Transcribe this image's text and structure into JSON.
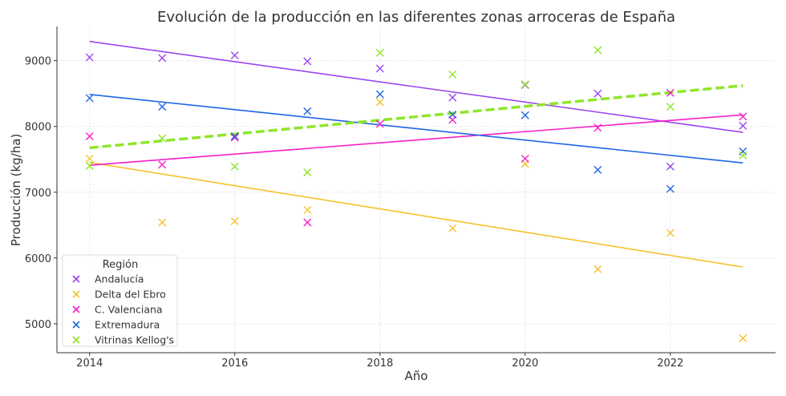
{
  "chart_data": {
    "type": "scatter",
    "title": "Evolución de la producción en las diferentes zonas arroceras de España",
    "xlabel": "Año",
    "ylabel": "Producción (kg/ha)",
    "xlim": [
      2013.55,
      2023.45
    ],
    "ylim": [
      4560,
      9520
    ],
    "xticks": [
      2014,
      2016,
      2018,
      2020,
      2022
    ],
    "yticks": [
      5000,
      6000,
      7000,
      8000,
      9000
    ],
    "grid": true,
    "legend": {
      "title": "Región",
      "placement": "lower-left"
    },
    "x": [
      2014,
      2015,
      2016,
      2017,
      2018,
      2019,
      2020,
      2021,
      2022,
      2023
    ],
    "series": [
      {
        "name": "Andalucía",
        "color": "#9b45f0",
        "trend": "solid",
        "values": [
          9050,
          9040,
          9080,
          8990,
          8880,
          8440,
          8630,
          8500,
          7390,
          8010
        ]
      },
      {
        "name": "Delta del Ebro",
        "color": "#f5c22c",
        "trend": "solid",
        "values": [
          7510,
          6540,
          6560,
          6730,
          8370,
          6450,
          7430,
          5830,
          6380,
          4780
        ]
      },
      {
        "name": "C. Valenciana",
        "color": "#f51fc8",
        "trend": "solid",
        "values": [
          7850,
          7420,
          7830,
          6540,
          8040,
          8100,
          7510,
          7980,
          8510,
          8150
        ]
      },
      {
        "name": "Extremadura",
        "color": "#1f66e5",
        "trend": "solid",
        "values": [
          8430,
          8300,
          7850,
          8230,
          8490,
          8180,
          8170,
          7340,
          7050,
          7620
        ]
      },
      {
        "name": "Vitrinas Kellog's",
        "color": "#8ee62a",
        "trend": "dashed",
        "values": [
          7400,
          7820,
          7390,
          7300,
          9120,
          8790,
          8640,
          9160,
          8300,
          7560
        ]
      }
    ]
  }
}
